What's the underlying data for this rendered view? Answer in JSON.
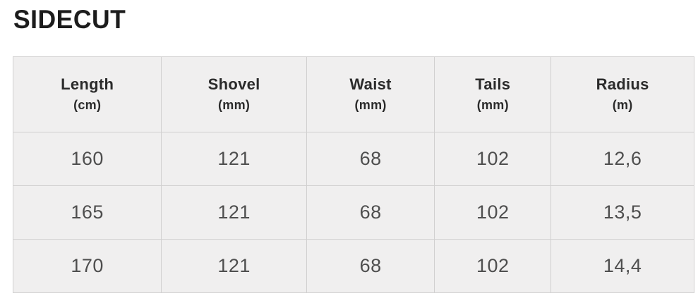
{
  "page": {
    "title": "SIDECUT"
  },
  "colors": {
    "page_background": "#ffffff",
    "cell_background": "#f0efef",
    "border": "#d1d0d0",
    "title_text": "#1c1c1c",
    "header_text": "#2b2b2b",
    "value_text": "#4e4e4e"
  },
  "chart_data": {
    "type": "table",
    "title": "SIDECUT",
    "columns": [
      {
        "label": "Length",
        "unit": "(cm)"
      },
      {
        "label": "Shovel",
        "unit": "(mm)"
      },
      {
        "label": "Waist",
        "unit": "(mm)"
      },
      {
        "label": "Tails",
        "unit": "(mm)"
      },
      {
        "label": "Radius",
        "unit": "(m)"
      }
    ],
    "rows": [
      [
        "160",
        "121",
        "68",
        "102",
        "12,6"
      ],
      [
        "165",
        "121",
        "68",
        "102",
        "13,5"
      ],
      [
        "170",
        "121",
        "68",
        "102",
        "14,4"
      ]
    ]
  }
}
